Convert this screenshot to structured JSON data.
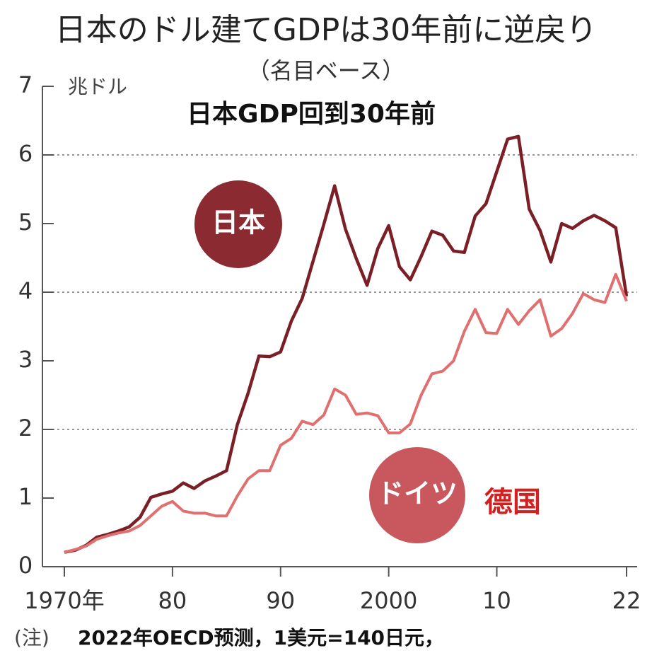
{
  "chart_data": {
    "type": "line",
    "title": "日本のドル建てGDPは30年前に逆戻り",
    "subtitle": "（名目ベース）",
    "y_unit": "兆ドル",
    "annotation": "日本GDP回到30年前",
    "annotation_de": "德国",
    "note_label": "(注)",
    "note": "2022年OECD预测，1美元=140日元，",
    "x": [
      1970,
      1971,
      1972,
      1973,
      1974,
      1975,
      1976,
      1977,
      1978,
      1979,
      1980,
      1981,
      1982,
      1983,
      1984,
      1985,
      1986,
      1987,
      1988,
      1989,
      1990,
      1991,
      1992,
      1993,
      1994,
      1995,
      1996,
      1997,
      1998,
      1999,
      2000,
      2001,
      2002,
      2003,
      2004,
      2005,
      2006,
      2007,
      2008,
      2009,
      2010,
      2011,
      2012,
      2013,
      2014,
      2015,
      2016,
      2017,
      2018,
      2019,
      2020,
      2021,
      2022
    ],
    "series": [
      {
        "name": "日本",
        "color": "#7a1f26",
        "values": [
          0.21,
          0.24,
          0.31,
          0.43,
          0.47,
          0.52,
          0.58,
          0.72,
          1.01,
          1.06,
          1.1,
          1.22,
          1.14,
          1.25,
          1.32,
          1.4,
          2.07,
          2.53,
          3.07,
          3.06,
          3.13,
          3.58,
          3.91,
          4.45,
          4.99,
          5.55,
          4.92,
          4.49,
          4.1,
          4.64,
          4.97,
          4.37,
          4.18,
          4.52,
          4.89,
          4.83,
          4.6,
          4.58,
          5.11,
          5.29,
          5.76,
          6.23,
          6.27,
          5.21,
          4.9,
          4.44,
          5.0,
          4.93,
          5.04,
          5.12,
          5.04,
          4.94,
          3.94
        ]
      },
      {
        "name": "ドイツ",
        "color": "#e07070",
        "values": [
          0.21,
          0.25,
          0.3,
          0.4,
          0.45,
          0.49,
          0.52,
          0.6,
          0.74,
          0.88,
          0.95,
          0.81,
          0.78,
          0.78,
          0.74,
          0.74,
          1.03,
          1.28,
          1.4,
          1.4,
          1.77,
          1.87,
          2.12,
          2.07,
          2.21,
          2.59,
          2.5,
          2.22,
          2.24,
          2.2,
          1.95,
          1.95,
          2.08,
          2.5,
          2.81,
          2.85,
          3.0,
          3.43,
          3.75,
          3.41,
          3.4,
          3.75,
          3.53,
          3.73,
          3.89,
          3.36,
          3.47,
          3.69,
          3.98,
          3.89,
          3.85,
          4.26,
          3.87
        ]
      }
    ],
    "xlim": [
      1970,
      2022
    ],
    "xticks": [
      {
        "value": 1970,
        "label": "1970年"
      },
      1980,
      1990,
      2000,
      {
        "value": 2010,
        "label": "10"
      },
      {
        "value": 2022,
        "label": "22"
      }
    ],
    "xtick_labels_short": {
      "1980": "80",
      "1990": "90"
    },
    "ylim": [
      0,
      7
    ],
    "yticks": [
      0,
      1,
      2,
      3,
      4,
      5,
      6,
      7
    ],
    "grid_lines": [
      2,
      4,
      6
    ]
  }
}
